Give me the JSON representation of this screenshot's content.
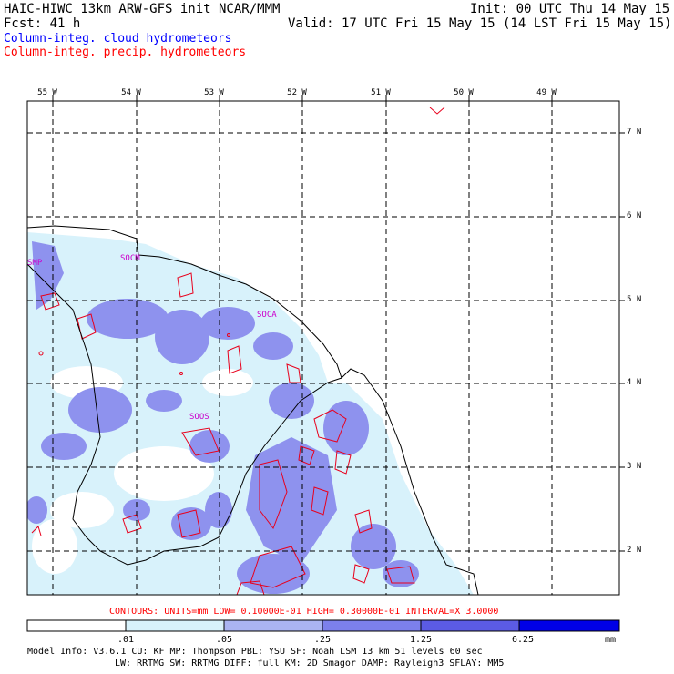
{
  "header": {
    "title": "HAIC-HIWC 13km ARW-GFS init   NCAR/MMM",
    "init": "Init: 00 UTC Thu 14 May 15",
    "fcst": "Fcst:   41 h",
    "valid": "Valid: 17 UTC Fri 15 May 15 (14 LST Fri 15 May 15)",
    "field_cloud": "Column-integ. cloud hydrometeors",
    "field_precip": "Column-integ. precip. hydrometeors"
  },
  "colors": {
    "cloud_text": "#0000ff",
    "precip_text": "#ff0000",
    "station": "#cc00cc",
    "shade_1": "#d8f2fb",
    "shade_2": "#aab4f2",
    "shade_3": "#7c80ec",
    "shade_4": "#5b5be4",
    "shade_5": "#0000e6"
  },
  "lon_labels": [
    "55 W",
    "54 W",
    "53 W",
    "52 W",
    "51 W",
    "50 W",
    "49 W"
  ],
  "lat_labels": [
    "7 N",
    "6 N",
    "5 N",
    "4 N",
    "3 N",
    "2 N"
  ],
  "stations": [
    "SMP",
    "SOCM",
    "SOCA",
    "SOOS"
  ],
  "contour_info": "CONTOURS:  UNITS=mm  LOW= 0.10000E-01  HIGH= 0.30000E-01  INTERVAL=X  3.0000",
  "colorbar": {
    "labels": [
      ".01",
      ".05",
      ".25",
      "1.25",
      "6.25"
    ],
    "units": "mm"
  },
  "footer": {
    "line1": "Model Info: V3.6.1    CU: KF      MP: Thompson     PBL: YSU       SF: Noah LSM     13 km   51 levels   60 sec",
    "line2": "LW: RRTMG    SW: RRTMG   DIFF: full    KM: 2D Smagor  DAMP: Rayleigh3    SFLAY: MM5"
  }
}
